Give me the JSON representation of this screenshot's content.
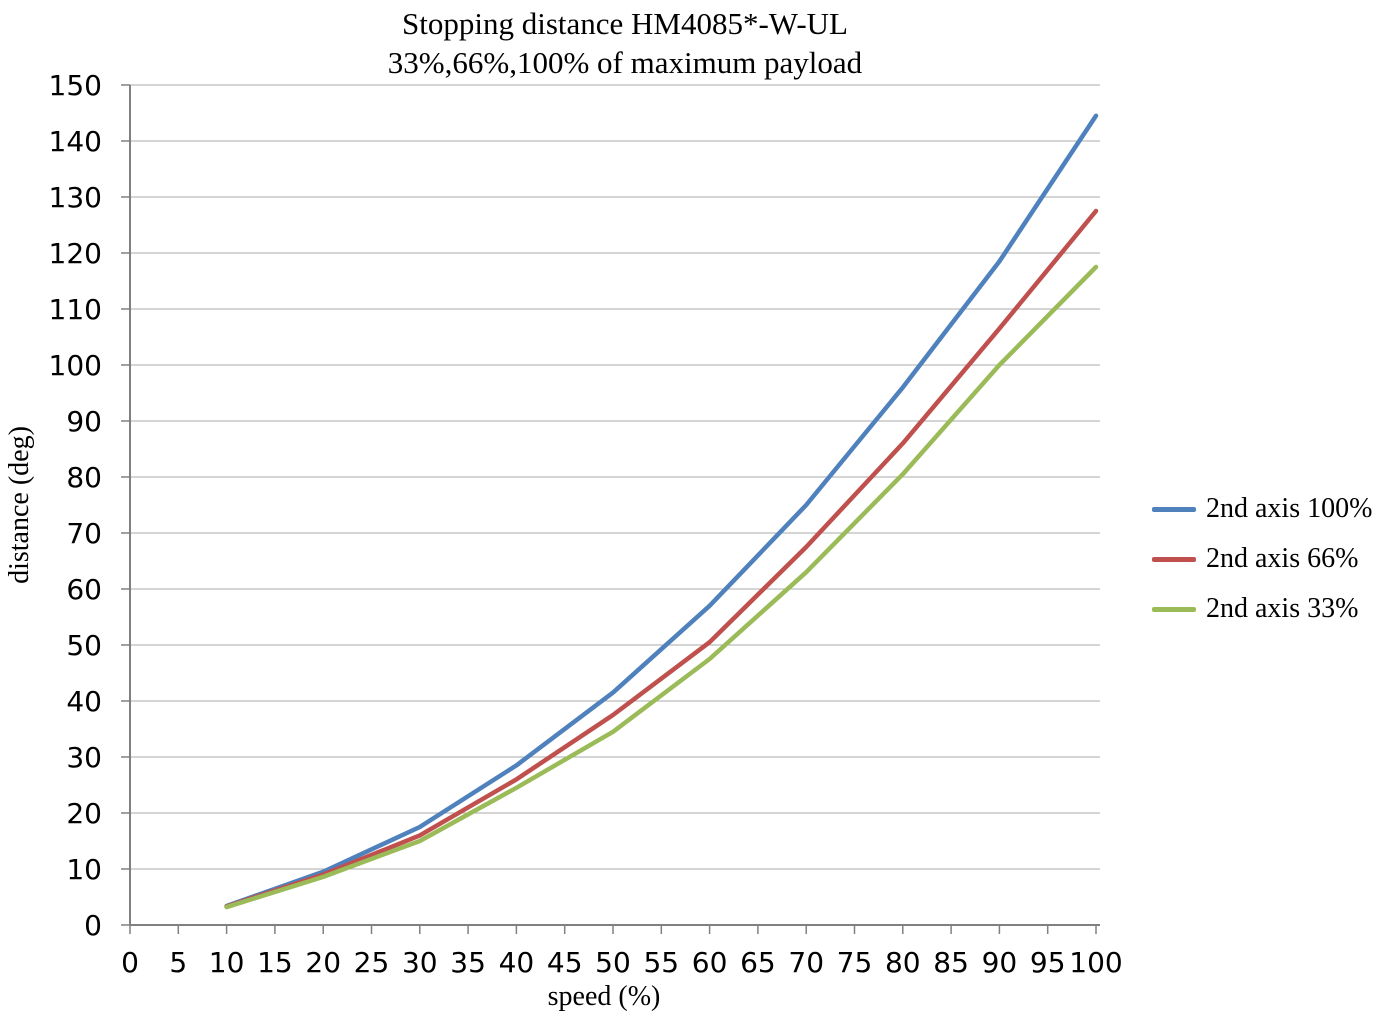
{
  "title_line1": "Stopping distance HM4085*-W-UL",
  "title_line2": "33%,66%,100% of maximum payload",
  "chart_data": {
    "type": "line",
    "title": "Stopping distance HM4085*-W-UL 33%,66%,100% of maximum payload",
    "xlabel": "speed (%)",
    "ylabel": "distance (deg)",
    "xlim": [
      0,
      100
    ],
    "ylim": [
      0,
      150
    ],
    "x_ticks": [
      0,
      5,
      10,
      15,
      20,
      25,
      30,
      35,
      40,
      45,
      50,
      55,
      60,
      65,
      70,
      75,
      80,
      85,
      90,
      95,
      100
    ],
    "y_ticks": [
      0,
      10,
      20,
      30,
      40,
      50,
      60,
      70,
      80,
      90,
      100,
      110,
      120,
      130,
      140,
      150
    ],
    "grid": "horizontal",
    "legend_position": "right",
    "x": [
      10,
      20,
      30,
      40,
      50,
      60,
      70,
      80,
      90,
      100
    ],
    "series": [
      {
        "name": "2nd axis 100%",
        "color": "#4F81BD",
        "values": [
          3.4,
          9.5,
          17.5,
          28.5,
          41.5,
          57,
          75,
          96,
          118.5,
          144.5
        ]
      },
      {
        "name": "2nd axis 66%",
        "color": "#C0504D",
        "values": [
          3.3,
          9.0,
          16.0,
          26.0,
          37.5,
          50.5,
          67.5,
          86,
          106.5,
          127.5
        ]
      },
      {
        "name": "2nd axis 33%",
        "color": "#9BBB59",
        "values": [
          3.2,
          8.6,
          15.0,
          24.5,
          34.5,
          47.5,
          63,
          80.5,
          100,
          117.5
        ]
      }
    ]
  },
  "colors": {
    "gridline": "#ABABAB",
    "axis": "#808080",
    "tick_text": "#000000",
    "background": "#FFFFFF"
  }
}
